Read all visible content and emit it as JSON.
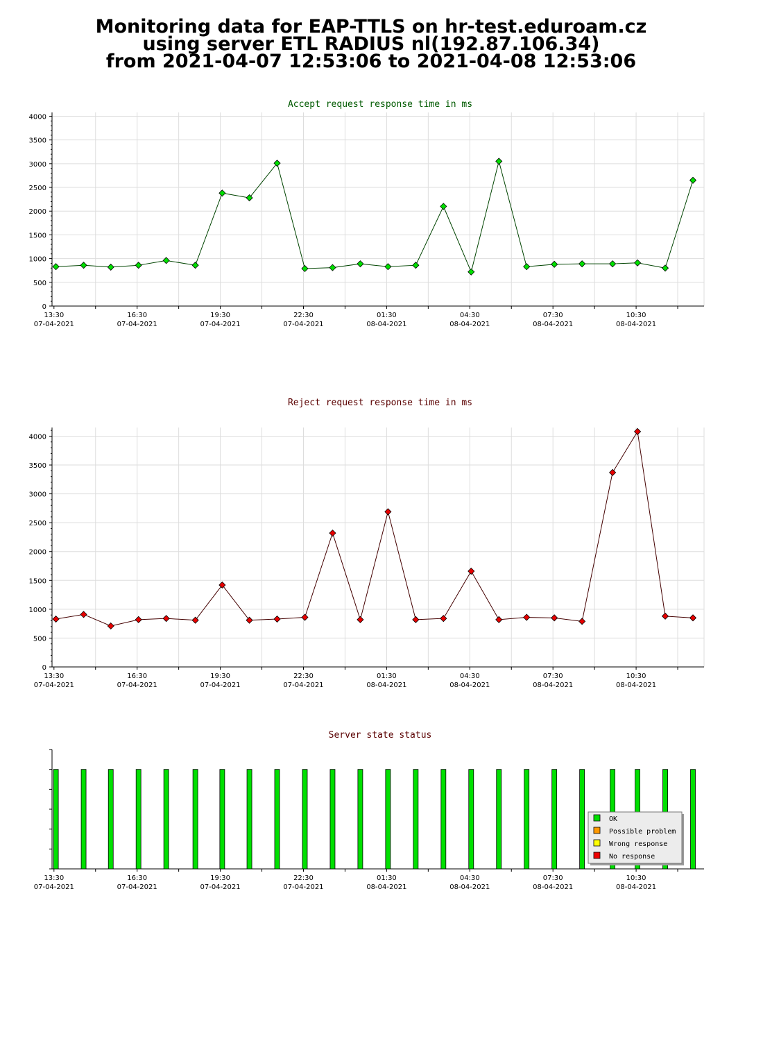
{
  "page": {
    "title_lines": [
      "Monitoring data for EAP-TTLS on hr-test.eduroam.cz",
      "using server ETL RADIUS nl(192.87.106.34)",
      "from 2021-04-07 12:53:06 to 2021-04-08 12:53:06"
    ]
  },
  "chart_data": [
    {
      "type": "line",
      "title": "Accept request response time in ms",
      "title_color": "#005a00",
      "line_color": "#004400",
      "marker_color": "#00e000",
      "x_unit": "hours since 13:30 07-04-2021",
      "x_ticks": [
        {
          "x": 0,
          "time": "13:30",
          "date": "07-04-2021"
        },
        {
          "x": 3,
          "time": "16:30",
          "date": "07-04-2021"
        },
        {
          "x": 6,
          "time": "19:30",
          "date": "07-04-2021"
        },
        {
          "x": 9,
          "time": "22:30",
          "date": "07-04-2021"
        },
        {
          "x": 12,
          "time": "01:30",
          "date": "08-04-2021"
        },
        {
          "x": 15,
          "time": "04:30",
          "date": "08-04-2021"
        },
        {
          "x": 18,
          "time": "07:30",
          "date": "08-04-2021"
        },
        {
          "x": 21,
          "time": "10:30",
          "date": "08-04-2021"
        }
      ],
      "xlim": [
        -0.07,
        23.45
      ],
      "ylim": [
        0,
        4080
      ],
      "y_ticks": [
        0,
        500,
        1000,
        1500,
        2000,
        2500,
        3000,
        3500,
        4000
      ],
      "grid": true,
      "x": [
        0.07,
        1.07,
        2.05,
        3.05,
        4.05,
        5.1,
        6.07,
        7.05,
        8.05,
        9.05,
        10.05,
        11.05,
        12.05,
        13.05,
        14.05,
        15.05,
        16.05,
        17.05,
        18.05,
        19.05,
        20.15,
        21.05,
        22.05,
        23.05
      ],
      "values": [
        830,
        860,
        820,
        860,
        960,
        860,
        2380,
        2280,
        3010,
        790,
        810,
        890,
        830,
        860,
        2100,
        720,
        3050,
        830,
        880,
        890,
        890,
        910,
        800,
        2650
      ]
    },
    {
      "type": "line",
      "title": "Reject request response time in ms",
      "title_color": "#5a0000",
      "line_color": "#440000",
      "marker_color": "#e80000",
      "x_unit": "hours since 13:30 07-04-2021",
      "x_ticks": [
        {
          "x": 0,
          "time": "13:30",
          "date": "07-04-2021"
        },
        {
          "x": 3,
          "time": "16:30",
          "date": "07-04-2021"
        },
        {
          "x": 6,
          "time": "19:30",
          "date": "07-04-2021"
        },
        {
          "x": 9,
          "time": "22:30",
          "date": "07-04-2021"
        },
        {
          "x": 12,
          "time": "01:30",
          "date": "08-04-2021"
        },
        {
          "x": 15,
          "time": "04:30",
          "date": "08-04-2021"
        },
        {
          "x": 18,
          "time": "07:30",
          "date": "08-04-2021"
        },
        {
          "x": 21,
          "time": "10:30",
          "date": "08-04-2021"
        }
      ],
      "xlim": [
        -0.07,
        23.45
      ],
      "ylim": [
        0,
        4150
      ],
      "y_ticks": [
        0,
        500,
        1000,
        1500,
        2000,
        2500,
        3000,
        3500,
        4000
      ],
      "grid": true,
      "x": [
        0.07,
        1.07,
        2.05,
        3.05,
        4.05,
        5.1,
        6.07,
        7.05,
        8.05,
        9.05,
        10.05,
        11.05,
        12.05,
        13.05,
        14.05,
        15.05,
        16.05,
        17.05,
        18.05,
        19.05,
        20.15,
        21.05,
        22.05,
        23.05
      ],
      "values": [
        830,
        910,
        710,
        820,
        840,
        810,
        1420,
        810,
        830,
        860,
        2320,
        820,
        2690,
        820,
        840,
        1660,
        820,
        860,
        850,
        790,
        3370,
        4080,
        880,
        850
      ]
    },
    {
      "type": "bar",
      "title": "Server state status",
      "title_color": "#5a0000",
      "x_unit": "hours since 13:30 07-04-2021",
      "x_ticks": [
        {
          "x": 0,
          "time": "13:30",
          "date": "07-04-2021"
        },
        {
          "x": 3,
          "time": "16:30",
          "date": "07-04-2021"
        },
        {
          "x": 6,
          "time": "19:30",
          "date": "07-04-2021"
        },
        {
          "x": 9,
          "time": "22:30",
          "date": "07-04-2021"
        },
        {
          "x": 12,
          "time": "01:30",
          "date": "08-04-2021"
        },
        {
          "x": 15,
          "time": "04:30",
          "date": "08-04-2021"
        },
        {
          "x": 18,
          "time": "07:30",
          "date": "08-04-2021"
        },
        {
          "x": 21,
          "time": "10:30",
          "date": "08-04-2021"
        }
      ],
      "xlim": [
        -0.07,
        23.45
      ],
      "ylim": [
        0,
        1.2
      ],
      "grid": false,
      "x": [
        0.07,
        1.07,
        2.05,
        3.05,
        4.05,
        5.1,
        6.07,
        7.05,
        8.05,
        9.05,
        10.05,
        11.05,
        12.05,
        13.05,
        14.05,
        15.05,
        16.05,
        17.05,
        18.05,
        19.05,
        20.15,
        21.05,
        22.05,
        23.05
      ],
      "values": [
        1,
        1,
        1,
        1,
        1,
        1,
        1,
        1,
        1,
        1,
        1,
        1,
        1,
        1,
        1,
        1,
        1,
        1,
        1,
        1,
        1,
        1,
        1,
        1
      ],
      "states": [
        "OK",
        "OK",
        "OK",
        "OK",
        "OK",
        "OK",
        "OK",
        "OK",
        "OK",
        "OK",
        "OK",
        "OK",
        "OK",
        "OK",
        "OK",
        "OK",
        "OK",
        "OK",
        "OK",
        "OK",
        "OK",
        "OK",
        "OK",
        "OK"
      ],
      "legend": [
        {
          "label": "OK",
          "color": "#00e000"
        },
        {
          "label": "Possible problem",
          "color": "#ff9900"
        },
        {
          "label": "Wrong response",
          "color": "#ffff00"
        },
        {
          "label": "No response",
          "color": "#ee0000"
        }
      ],
      "legend_position": "bottom-right"
    }
  ]
}
